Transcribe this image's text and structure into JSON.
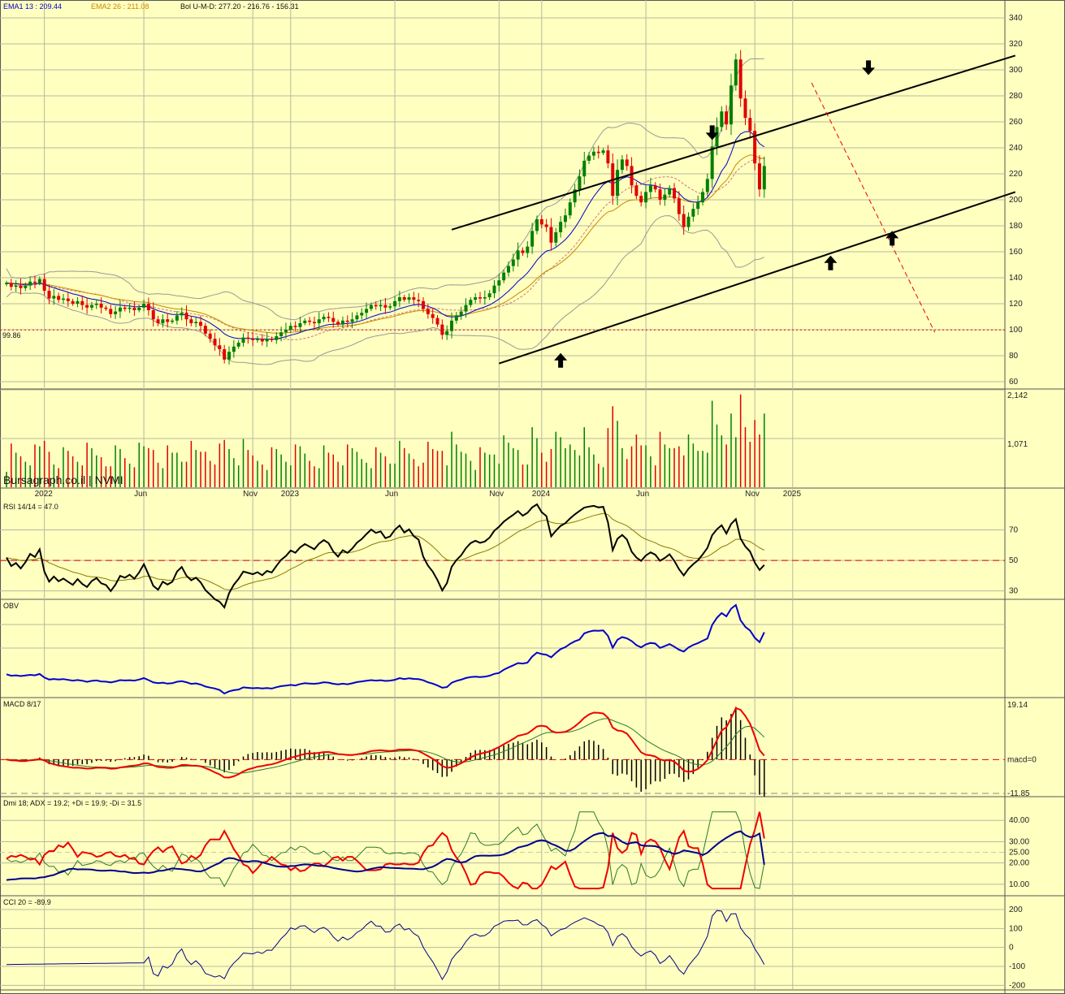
{
  "chart_data": {
    "type": "candlestick",
    "header": {
      "ema1": "EMA1 13 : 209.44",
      "ema2": "EMA2 26 : 211.08",
      "bol": "Bol U-M-D: 277.20 - 216.76 - 156.31"
    },
    "ema1_color": "#0000cc",
    "ema2_color": "#cc8800",
    "up_color": "#008000",
    "down_color": "#e00000",
    "price_axis": {
      "ylim": [
        55,
        345
      ],
      "ticks": [
        340,
        320,
        300,
        280,
        260,
        240,
        220,
        200,
        180,
        160,
        140,
        120,
        100,
        80,
        60
      ]
    },
    "reference_level": {
      "value": 99.86,
      "label": "99.86"
    },
    "time_labels": [
      {
        "label": "2022",
        "week": 8
      },
      {
        "label": "Jun",
        "week": 29
      },
      {
        "label": "Nov",
        "week": 52
      },
      {
        "label": "2023",
        "week": 60
      },
      {
        "label": "Jun",
        "week": 82
      },
      {
        "label": "Nov",
        "week": 104
      },
      {
        "label": "2024",
        "week": 113
      },
      {
        "label": "Jun",
        "week": 135
      },
      {
        "label": "Nov",
        "week": 158
      },
      {
        "label": "2025",
        "week": 166
      }
    ],
    "candles": {
      "start": 135,
      "changes": [
        1,
        -3,
        1,
        -2,
        2,
        3,
        -1,
        3,
        -9,
        -6,
        2,
        -3,
        1,
        -2,
        -2,
        2,
        -3,
        -2,
        2,
        1,
        -3,
        -1,
        -4,
        2,
        3,
        -1,
        1,
        -2,
        2,
        3,
        -5,
        -7,
        -3,
        3,
        -2,
        1,
        4,
        2,
        -5,
        -3,
        1,
        -3,
        -6,
        -4,
        -5,
        -3,
        -8,
        6,
        4,
        3,
        4,
        -1,
        -1,
        1,
        -2,
        2,
        -1,
        3,
        3,
        2,
        3,
        -1,
        3,
        2,
        -1,
        -1,
        3,
        2,
        -1,
        -3,
        -2,
        3,
        -1,
        2,
        3,
        2,
        3,
        3,
        -1,
        1,
        -2,
        1,
        4,
        3,
        -2,
        2,
        -2,
        -1,
        -6,
        -4,
        -3,
        -5,
        -8,
        3,
        8,
        4,
        3,
        5,
        4,
        2,
        -1,
        1,
        3,
        6,
        4,
        6,
        5,
        5,
        7,
        -2,
        5,
        12,
        9,
        -4,
        -2,
        -12,
        8,
        8,
        5,
        10,
        10,
        10,
        12,
        4,
        3,
        -1,
        2,
        -10,
        -25,
        20,
        8,
        -5,
        -15,
        -8,
        -5,
        8,
        5,
        -3,
        -8,
        4,
        5,
        -8,
        -12,
        -10,
        8,
        6,
        5,
        8,
        10,
        25,
        15,
        12,
        -10,
        30,
        20,
        -30,
        -15,
        -10,
        -25,
        -20,
        18
      ],
      "up_color": "#008000",
      "down_color": "#e00000"
    },
    "channel": {
      "upper": {
        "from": [
          94,
          177
        ],
        "to": [
          213,
          311
        ]
      },
      "lower": {
        "from": [
          104,
          74
        ],
        "to": [
          213,
          206
        ]
      }
    },
    "projection": {
      "from": [
        170,
        290
      ],
      "to": [
        196,
        98
      ]
    },
    "arrows": [
      {
        "dir": "up",
        "week": 117,
        "value": 82
      },
      {
        "dir": "down",
        "week": 149,
        "value": 246
      },
      {
        "dir": "up",
        "week": 174,
        "value": 157
      },
      {
        "dir": "down",
        "week": 182,
        "value": 296
      },
      {
        "dir": "up",
        "week": 187,
        "value": 176
      }
    ],
    "volume": {
      "ticks": [
        {
          "value": 2142,
          "label": "2,142"
        },
        {
          "value": 1071,
          "label": "1,071"
        }
      ],
      "ymax": 2142
    },
    "rsi": {
      "label": "RSI 14/14 = 47.0",
      "ylim": [
        25,
        90
      ],
      "ticks": [
        70,
        50,
        30
      ],
      "last": 47.0,
      "ref": 50
    },
    "obv": {
      "label": "OBV"
    },
    "macd": {
      "label": "MACD 8/17",
      "ticks": [
        {
          "value": 19.14,
          "label": "19.14"
        },
        {
          "value": 0,
          "label": "macd=0"
        },
        {
          "value": -11.85,
          "label": "-11.85"
        }
      ],
      "ylim": [
        -11.85,
        19.14
      ]
    },
    "dmi": {
      "label": "Dmi 18; ADX = 19.2; +Di = 19.9; -Di = 31.5",
      "ticks": [
        40,
        30,
        25,
        20,
        10
      ],
      "ylim": [
        5,
        50
      ]
    },
    "cci": {
      "label": "CCI 20 = -89.9",
      "ticks": [
        200,
        100,
        0,
        -100,
        -200
      ],
      "ylim": [
        -220,
        260
      ],
      "last": -89.9
    }
  },
  "watermark": "Bursagraph.co.il | NVMI"
}
